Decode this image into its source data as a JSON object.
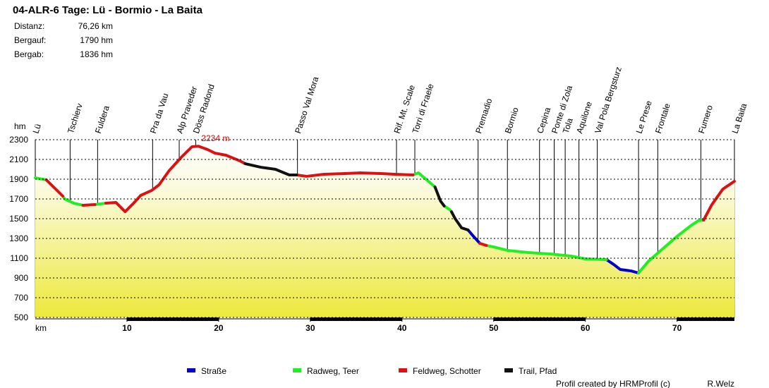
{
  "chart_data": {
    "type": "line",
    "title": "04-ALR-6 Tage: Lü - Bormio - La Baita",
    "stats": [
      {
        "label": "Distanz:",
        "value": "76,26 km"
      },
      {
        "label": "Bergauf:",
        "value": "1790 hm"
      },
      {
        "label": "Bergab:",
        "value": "1836 hm"
      }
    ],
    "y_label": "hm",
    "x_label": "km",
    "xlim": [
      0,
      76.26
    ],
    "xticks": [
      10,
      20,
      30,
      40,
      50,
      60,
      70
    ],
    "ylim": [
      500,
      2300
    ],
    "yticks": [
      500,
      700,
      900,
      1100,
      1300,
      1500,
      1700,
      1900,
      2100,
      2300
    ],
    "grid": true,
    "peak_label": "2234 m",
    "waypoints": [
      {
        "name": "Lü",
        "km": 0
      },
      {
        "name": "Tschierv",
        "km": 3.8
      },
      {
        "name": "Fuldera",
        "km": 6.8
      },
      {
        "name": "Pra da Vau",
        "km": 12.8
      },
      {
        "name": "Alp Praveder",
        "km": 15.7
      },
      {
        "name": "Döss Radond",
        "km": 17.5
      },
      {
        "name": "Passo Val Mora",
        "km": 28.6
      },
      {
        "name": "Rif. Mt. Scale",
        "km": 39.4
      },
      {
        "name": "Torri di Fraele",
        "km": 41.4
      },
      {
        "name": "Premadio",
        "km": 48.3
      },
      {
        "name": "Bormio",
        "km": 51.5
      },
      {
        "name": "Cepina",
        "km": 55.0
      },
      {
        "name": "Ponte di Zola",
        "km": 56.6
      },
      {
        "name": "Tola",
        "km": 57.8
      },
      {
        "name": "Aquilone",
        "km": 59.3
      },
      {
        "name": "Val Pola Bergsturz",
        "km": 61.3
      },
      {
        "name": "Le Prese",
        "km": 65.8
      },
      {
        "name": "Frontale",
        "km": 67.9
      },
      {
        "name": "Fumero",
        "km": 72.6
      },
      {
        "name": "La Baita",
        "km": 76.26
      }
    ],
    "series": [
      {
        "name": "Straße",
        "color": "#0000cc",
        "x": [
          47.2,
          47.8,
          48.5,
          null,
          62.3,
          63.1,
          63.8,
          65,
          65.8
        ],
        "values": [
          1386,
          1321,
          1250,
          null,
          1086,
          1036,
          986,
          971,
          950
        ]
      },
      {
        "name": "Radweg, Teer",
        "color": "#22ee22",
        "x": [
          0,
          1.2,
          null,
          3.0,
          3.2,
          4.2,
          5.2,
          null,
          6.5,
          7.7,
          null,
          41.2,
          41.8,
          42.7,
          43.6,
          null,
          44.6,
          45.2,
          45.4,
          null,
          49.2,
          50,
          51.5,
          53.8,
          56.2,
          58.5,
          60,
          62.3,
          null,
          65.8,
          66.9,
          68.5,
          70,
          71.5,
          72.3,
          72.9
        ],
        "values": [
          1914,
          1893,
          null,
          1729,
          1700,
          1657,
          1636,
          null,
          1643,
          1657,
          null,
          1943,
          1964,
          1893,
          1821,
          null,
          1629,
          1593,
          1570,
          null,
          1229,
          1214,
          1179,
          1157,
          1143,
          1121,
          1093,
          1086,
          null,
          950,
          1071,
          1200,
          1321,
          1429,
          1479,
          1486
        ]
      },
      {
        "name": "Feldweg, Schotter",
        "color": "#dd1111",
        "x": [
          1.2,
          3.0,
          null,
          5.2,
          6.5,
          null,
          7.7,
          8.8,
          9.8,
          10.8,
          11.5,
          12.7,
          13.5,
          14.6,
          16.0,
          17.1,
          17.8,
          18.8,
          19.6,
          20.8,
          22.3,
          22.9,
          null,
          28.5,
          29.6,
          31.5,
          33.8,
          35.4,
          37.7,
          39.2,
          41.2,
          null,
          48.5,
          49.2,
          null,
          72.9,
          73.8,
          75,
          76.26
        ],
        "values": [
          1893,
          1729,
          null,
          1636,
          1643,
          null,
          1657,
          1664,
          1571,
          1664,
          1736,
          1786,
          1843,
          1986,
          2129,
          2229,
          2234,
          2200,
          2164,
          2143,
          2086,
          2057,
          null,
          1943,
          1929,
          1950,
          1957,
          1964,
          1957,
          1950,
          1943,
          null,
          1250,
          1229,
          null,
          1486,
          1643,
          1800,
          1879
        ]
      },
      {
        "name": "Trail, Pfad",
        "color": "#111111",
        "x": [
          22.9,
          24.6,
          26.2,
          27.7,
          28.5,
          null,
          43.6,
          44.2,
          44.6,
          null,
          45.4,
          45.8,
          46.5,
          47.2
        ],
        "values": [
          2057,
          2021,
          2000,
          1943,
          1943,
          null,
          1821,
          1679,
          1629,
          null,
          1570,
          1500,
          1407,
          1386
        ]
      }
    ],
    "credit": "Profil created by HRMProfil (c)",
    "author": "R.Welz"
  }
}
